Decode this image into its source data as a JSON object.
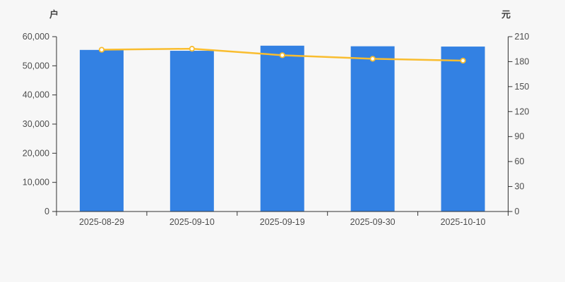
{
  "page": {
    "background_color": "#f7f7f7",
    "title": "",
    "legend": null
  },
  "chart_data": {
    "type": "combo",
    "grid": false,
    "legend_position": "none",
    "title": "",
    "categories": [
      "2025-08-29",
      "2025-09-10",
      "2025-09-19",
      "2025-09-30",
      "2025-10-10"
    ],
    "series": [
      {
        "name": "bar-series",
        "type": "bar",
        "axis": "left",
        "unit": "户",
        "color": "#3381e3",
        "values": [
          55450,
          55150,
          56900,
          56700,
          56600
        ]
      },
      {
        "name": "line-series",
        "type": "line",
        "axis": "right",
        "unit": "元",
        "color": "#f9bd2f",
        "marker": "hollow-circle",
        "marker_fill": "#ffffff",
        "values": [
          194.3,
          195.5,
          187.7,
          183.4,
          181.2
        ]
      }
    ],
    "left_axis": {
      "name": "户",
      "min": 0,
      "max": 60000,
      "tick_interval": 10000,
      "tick_labels": [
        "0",
        "10,000",
        "20,000",
        "30,000",
        "40,000",
        "50,000",
        "60,000"
      ]
    },
    "right_axis": {
      "name": "元",
      "min": 0,
      "max": 210,
      "tick_interval": 30,
      "tick_labels": [
        "0",
        "30",
        "60",
        "90",
        "120",
        "150",
        "180",
        "210"
      ]
    },
    "x_axis": {
      "tick_labels": [
        "2025-08-29",
        "2025-09-10",
        "2025-09-19",
        "2025-09-30",
        "2025-10-10"
      ]
    },
    "axis_line_color": "#333333",
    "tick_label_color": "#4d4d4d"
  }
}
